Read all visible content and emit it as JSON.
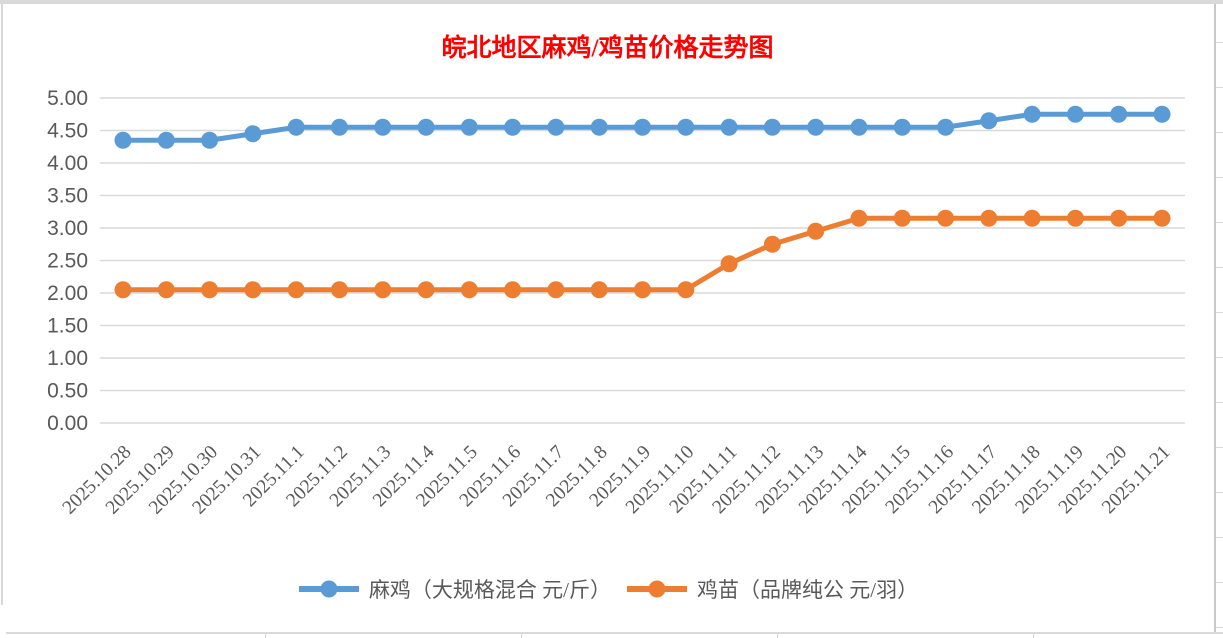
{
  "title": {
    "text": "皖北地区麻鸡/鸡苗价格走势图",
    "color": "#FF0000"
  },
  "chart_data": {
    "type": "line",
    "title": "皖北地区麻鸡/鸡苗价格走势图",
    "title_color": "#FF0000",
    "categories": [
      "2025.10.28",
      "2025.10.29",
      "2025.10.30",
      "2025.10.31",
      "2025.11.1",
      "2025.11.2",
      "2025.11.3",
      "2025.11.4",
      "2025.11.5",
      "2025.11.6",
      "2025.11.7",
      "2025.11.8",
      "2025.11.9",
      "2025.11.10",
      "2025.11.11",
      "2025.11.12",
      "2025.11.13",
      "2025.11.14",
      "2025.11.15",
      "2025.11.16",
      "2025.11.17",
      "2025.11.18",
      "2025.11.19",
      "2025.11.20",
      "2025.11.21"
    ],
    "series": [
      {
        "name": "麻鸡（大规格混合 元/斤）",
        "color": "#5B9BD5",
        "values": [
          4.35,
          4.35,
          4.35,
          4.45,
          4.55,
          4.55,
          4.55,
          4.55,
          4.55,
          4.55,
          4.55,
          4.55,
          4.55,
          4.55,
          4.55,
          4.55,
          4.55,
          4.55,
          4.55,
          4.55,
          4.65,
          4.75,
          4.75,
          4.75,
          4.75
        ]
      },
      {
        "name": "鸡苗（品牌纯公 元/羽）",
        "color": "#ED7D31",
        "values": [
          2.05,
          2.05,
          2.05,
          2.05,
          2.05,
          2.05,
          2.05,
          2.05,
          2.05,
          2.05,
          2.05,
          2.05,
          2.05,
          2.05,
          2.45,
          2.75,
          2.95,
          3.15,
          3.15,
          3.15,
          3.15,
          3.15,
          3.15,
          3.15,
          3.15
        ]
      }
    ],
    "ylim": [
      0,
      5
    ],
    "ytick_step": 0.5,
    "ytick_labels": [
      "0.00",
      "0.50",
      "1.00",
      "1.50",
      "2.00",
      "2.50",
      "3.00",
      "3.50",
      "4.00",
      "4.50",
      "5.00"
    ],
    "grid": "horizontal-only",
    "gridline_color": "#D9D9D9",
    "axis_text_color": "#595959",
    "legend_position": "bottom",
    "x_label_rotation_deg": 45
  }
}
